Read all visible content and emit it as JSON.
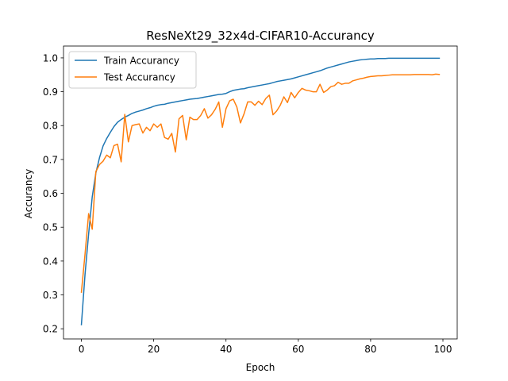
{
  "chart_data": {
    "type": "line",
    "title": "ResNeXt29_32x4d-CIFAR10-Accurancy",
    "xlabel": "Epoch",
    "ylabel": "Accurancy",
    "xlim": [
      -4.95,
      103.95
    ],
    "ylim": [
      0.17,
      1.035
    ],
    "xticks": [
      0,
      20,
      40,
      60,
      80,
      100
    ],
    "yticks": [
      0.2,
      0.3,
      0.4,
      0.5,
      0.6,
      0.7,
      0.8,
      0.9,
      1.0
    ],
    "xtick_labels": [
      "0",
      "20",
      "40",
      "60",
      "80",
      "100"
    ],
    "ytick_labels": [
      "0.2",
      "0.3",
      "0.4",
      "0.5",
      "0.6",
      "0.7",
      "0.8",
      "0.9",
      "1.0"
    ],
    "grid": false,
    "legend_position": "upper left",
    "x": [
      0,
      1,
      2,
      3,
      4,
      5,
      6,
      7,
      8,
      9,
      10,
      11,
      12,
      13,
      14,
      15,
      16,
      17,
      18,
      19,
      20,
      21,
      22,
      23,
      24,
      25,
      26,
      27,
      28,
      29,
      30,
      31,
      32,
      33,
      34,
      35,
      36,
      37,
      38,
      39,
      40,
      41,
      42,
      43,
      44,
      45,
      46,
      47,
      48,
      49,
      50,
      51,
      52,
      53,
      54,
      55,
      56,
      57,
      58,
      59,
      60,
      61,
      62,
      63,
      64,
      65,
      66,
      67,
      68,
      69,
      70,
      71,
      72,
      73,
      74,
      75,
      76,
      77,
      78,
      79,
      80,
      81,
      82,
      83,
      84,
      85,
      86,
      87,
      88,
      89,
      90,
      91,
      92,
      93,
      94,
      95,
      96,
      97,
      98,
      99
    ],
    "series": [
      {
        "name": "Train Accurancy",
        "color": "#1f77b4",
        "values": [
          0.212,
          0.36,
          0.48,
          0.59,
          0.66,
          0.705,
          0.74,
          0.762,
          0.78,
          0.797,
          0.81,
          0.818,
          0.825,
          0.83,
          0.836,
          0.84,
          0.843,
          0.846,
          0.85,
          0.853,
          0.857,
          0.86,
          0.862,
          0.863,
          0.866,
          0.868,
          0.87,
          0.872,
          0.874,
          0.876,
          0.878,
          0.879,
          0.88,
          0.882,
          0.884,
          0.886,
          0.888,
          0.89,
          0.892,
          0.893,
          0.895,
          0.9,
          0.904,
          0.906,
          0.908,
          0.909,
          0.912,
          0.914,
          0.916,
          0.918,
          0.92,
          0.922,
          0.924,
          0.927,
          0.93,
          0.932,
          0.934,
          0.936,
          0.938,
          0.941,
          0.944,
          0.947,
          0.95,
          0.953,
          0.956,
          0.959,
          0.962,
          0.966,
          0.97,
          0.973,
          0.976,
          0.979,
          0.982,
          0.985,
          0.988,
          0.99,
          0.992,
          0.994,
          0.995,
          0.996,
          0.997,
          0.997,
          0.998,
          0.998,
          0.998,
          0.999,
          0.999,
          0.999,
          0.999,
          0.999,
          0.999,
          0.999,
          0.999,
          0.999,
          0.999,
          0.999,
          0.999,
          0.999,
          0.999,
          0.999
        ]
      },
      {
        "name": "Test Accurancy",
        "color": "#ff7f0e",
        "values": [
          0.308,
          0.42,
          0.54,
          0.494,
          0.664,
          0.685,
          0.695,
          0.713,
          0.705,
          0.741,
          0.745,
          0.693,
          0.833,
          0.752,
          0.8,
          0.803,
          0.805,
          0.778,
          0.795,
          0.785,
          0.805,
          0.795,
          0.805,
          0.765,
          0.76,
          0.777,
          0.722,
          0.82,
          0.83,
          0.758,
          0.825,
          0.818,
          0.818,
          0.83,
          0.85,
          0.822,
          0.832,
          0.848,
          0.87,
          0.795,
          0.85,
          0.873,
          0.878,
          0.855,
          0.808,
          0.835,
          0.87,
          0.87,
          0.86,
          0.872,
          0.862,
          0.88,
          0.89,
          0.832,
          0.843,
          0.86,
          0.885,
          0.868,
          0.898,
          0.882,
          0.898,
          0.91,
          0.905,
          0.903,
          0.9,
          0.9,
          0.922,
          0.898,
          0.905,
          0.915,
          0.918,
          0.928,
          0.922,
          0.925,
          0.925,
          0.932,
          0.935,
          0.938,
          0.94,
          0.943,
          0.945,
          0.946,
          0.947,
          0.947,
          0.948,
          0.949,
          0.95,
          0.95,
          0.95,
          0.95,
          0.95,
          0.95,
          0.951,
          0.951,
          0.951,
          0.951,
          0.951,
          0.95,
          0.952,
          0.951
        ]
      }
    ]
  }
}
